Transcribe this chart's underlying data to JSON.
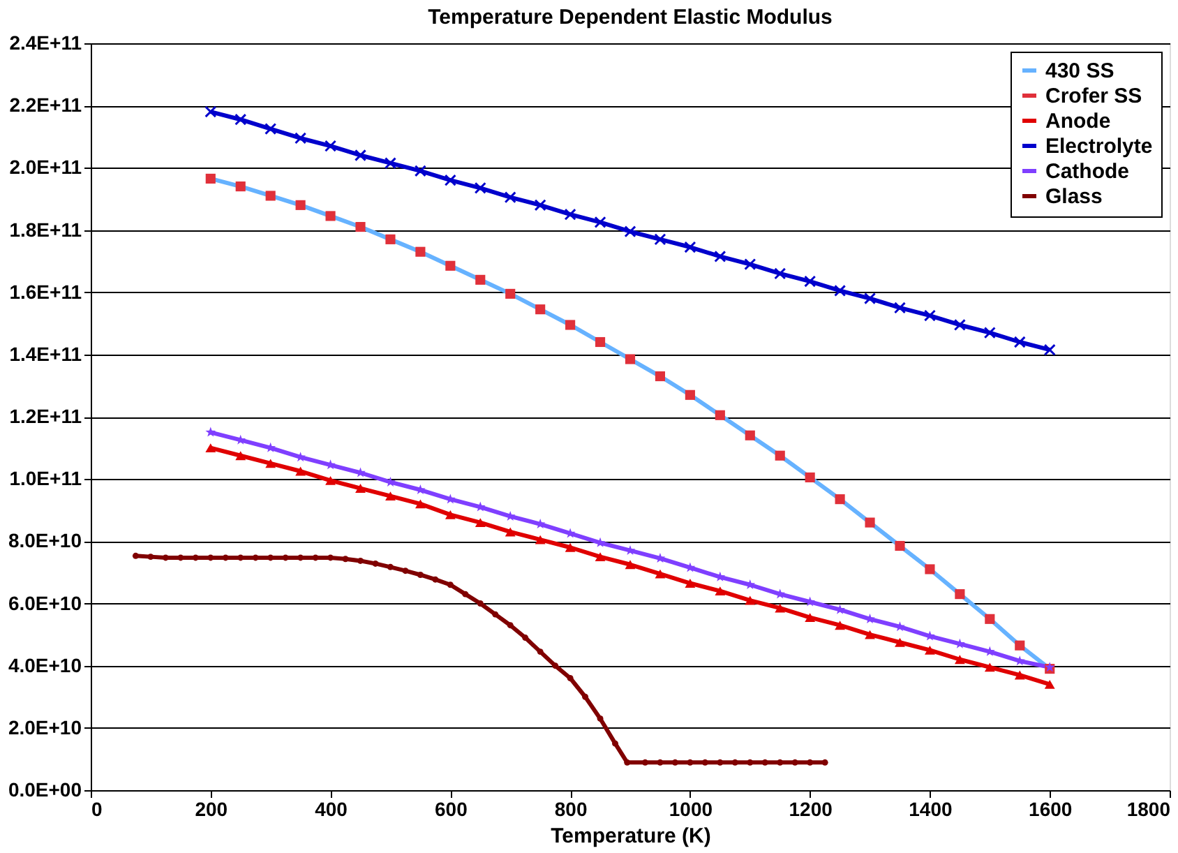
{
  "chart_data": {
    "type": "line",
    "title": "Temperature Dependent Elastic Modulus",
    "xlabel": "Temperature (K)",
    "x": [
      200,
      250,
      300,
      350,
      400,
      450,
      500,
      550,
      600,
      650,
      700,
      750,
      800,
      850,
      900,
      950,
      1000,
      1050,
      1100,
      1150,
      1200,
      1250,
      1300,
      1350,
      1400,
      1450,
      1500,
      1550,
      1600
    ],
    "xlim": [
      0,
      1800
    ],
    "xticks": [
      0,
      200,
      400,
      600,
      800,
      1000,
      1200,
      1400,
      1600,
      1800
    ],
    "ylim": [
      0,
      240000000000.0
    ],
    "yticks": [
      {
        "value": 0,
        "label": "0.0E+00"
      },
      {
        "value": 20000000000.0,
        "label": "2.0E+10"
      },
      {
        "value": 40000000000.0,
        "label": "4.0E+10"
      },
      {
        "value": 60000000000.0,
        "label": "6.0E+10"
      },
      {
        "value": 80000000000.0,
        "label": "8.0E+10"
      },
      {
        "value": 100000000000.0,
        "label": "1.0E+11"
      },
      {
        "value": 120000000000.0,
        "label": "1.2E+11"
      },
      {
        "value": 140000000000.0,
        "label": "1.4E+11"
      },
      {
        "value": 160000000000.0,
        "label": "1.6E+11"
      },
      {
        "value": 180000000000.0,
        "label": "1.8E+11"
      },
      {
        "value": 200000000000.0,
        "label": "2.0E+11"
      },
      {
        "value": 220000000000.0,
        "label": "2.2E+11"
      },
      {
        "value": 240000000000.0,
        "label": "2.4E+11"
      }
    ],
    "grid": "y",
    "legend": "top right",
    "series": [
      {
        "name": "430 SS",
        "marker": "none",
        "color": "#66b2ff",
        "values": [
          196500000000.0,
          194000000000.0,
          191000000000.0,
          188000000000.0,
          184500000000.0,
          181000000000.0,
          177000000000.0,
          173000000000.0,
          168500000000.0,
          164000000000.0,
          159500000000.0,
          154500000000.0,
          149500000000.0,
          144000000000.0,
          138500000000.0,
          133000000000.0,
          127000000000.0,
          120500000000.0,
          114000000000.0,
          107500000000.0,
          100500000000.0,
          93500000000.0,
          86000000000.0,
          78500000000.0,
          71000000000.0,
          63000000000.0,
          55000000000.0,
          46500000000.0,
          39000000000.0
        ]
      },
      {
        "name": "Crofer SS",
        "type": "scatter",
        "marker": "square",
        "color": "#e0303a",
        "values": [
          196500000000.0,
          194000000000.0,
          191000000000.0,
          188000000000.0,
          184500000000.0,
          181000000000.0,
          177000000000.0,
          173000000000.0,
          168500000000.0,
          164000000000.0,
          159500000000.0,
          154500000000.0,
          149500000000.0,
          144000000000.0,
          138500000000.0,
          133000000000.0,
          127000000000.0,
          120500000000.0,
          114000000000.0,
          107500000000.0,
          100500000000.0,
          93500000000.0,
          86000000000.0,
          78500000000.0,
          71000000000.0,
          63000000000.0,
          55000000000.0,
          46500000000.0,
          39000000000.0
        ]
      },
      {
        "name": "Anode",
        "marker": "triangle",
        "color": "#e00000",
        "values": [
          110000000000.0,
          107500000000.0,
          105000000000.0,
          102500000000.0,
          99500000000.0,
          97000000000.0,
          94500000000.0,
          92000000000.0,
          88500000000.0,
          86000000000.0,
          83000000000.0,
          80500000000.0,
          78000000000.0,
          75000000000.0,
          72500000000.0,
          69500000000.0,
          66500000000.0,
          64000000000.0,
          61000000000.0,
          58500000000.0,
          55500000000.0,
          53000000000.0,
          50000000000.0,
          47500000000.0,
          45000000000.0,
          42000000000.0,
          39500000000.0,
          37000000000.0,
          34000000000.0
        ]
      },
      {
        "name": "Electrolyte",
        "marker": "cross",
        "color": "#0000cc",
        "values": [
          218000000000.0,
          215500000000.0,
          212500000000.0,
          209500000000.0,
          207000000000.0,
          204000000000.0,
          201500000000.0,
          199000000000.0,
          196000000000.0,
          193500000000.0,
          190500000000.0,
          188000000000.0,
          185000000000.0,
          182500000000.0,
          179500000000.0,
          177000000000.0,
          174500000000.0,
          171500000000.0,
          169000000000.0,
          166000000000.0,
          163500000000.0,
          160500000000.0,
          158000000000.0,
          155000000000.0,
          152500000000.0,
          149500000000.0,
          147000000000.0,
          144000000000.0,
          141500000000.0
        ]
      },
      {
        "name": "Cathode",
        "marker": "star",
        "color": "#7f3fff",
        "values": [
          115000000000.0,
          112500000000.0,
          110000000000.0,
          107000000000.0,
          104500000000.0,
          102000000000.0,
          99000000000.0,
          96500000000.0,
          93500000000.0,
          91000000000.0,
          88000000000.0,
          85500000000.0,
          82500000000.0,
          79500000000.0,
          77000000000.0,
          74500000000.0,
          71500000000.0,
          68500000000.0,
          66000000000.0,
          63000000000.0,
          60500000000.0,
          58000000000.0,
          55000000000.0,
          52500000000.0,
          49500000000.0,
          47000000000.0,
          44500000000.0,
          41500000000.0,
          39500000000.0
        ]
      },
      {
        "name": "Glass",
        "marker": "circle",
        "color": "#800000",
        "x": [
          75,
          100,
          125,
          150,
          175,
          200,
          225,
          250,
          275,
          300,
          325,
          350,
          375,
          400,
          425,
          450,
          475,
          500,
          525,
          550,
          575,
          600,
          625,
          650,
          675,
          700,
          725,
          750,
          775,
          800,
          825,
          850,
          875,
          895,
          925,
          950,
          975,
          1000,
          1025,
          1050,
          1075,
          1100,
          1125,
          1150,
          1175,
          1200,
          1225
        ],
        "values": [
          75300000000.0,
          75000000000.0,
          74700000000.0,
          74700000000.0,
          74700000000.0,
          74700000000.0,
          74700000000.0,
          74700000000.0,
          74700000000.0,
          74700000000.0,
          74700000000.0,
          74700000000.0,
          74700000000.0,
          74700000000.0,
          74300000000.0,
          73700000000.0,
          72800000000.0,
          71700000000.0,
          70500000000.0,
          69200000000.0,
          67700000000.0,
          66000000000.0,
          63000000000.0,
          60000000000.0,
          56500000000.0,
          53000000000.0,
          49000000000.0,
          44500000000.0,
          40000000000.0,
          36000000000.0,
          30000000000.0,
          23000000000.0,
          15000000000.0,
          8900000000.0,
          8900000000.0,
          8900000000.0,
          8900000000.0,
          8900000000.0,
          8900000000.0,
          8900000000.0,
          8900000000.0,
          8900000000.0,
          8900000000.0,
          8900000000.0,
          8900000000.0,
          8900000000.0,
          8900000000.0
        ]
      }
    ]
  }
}
